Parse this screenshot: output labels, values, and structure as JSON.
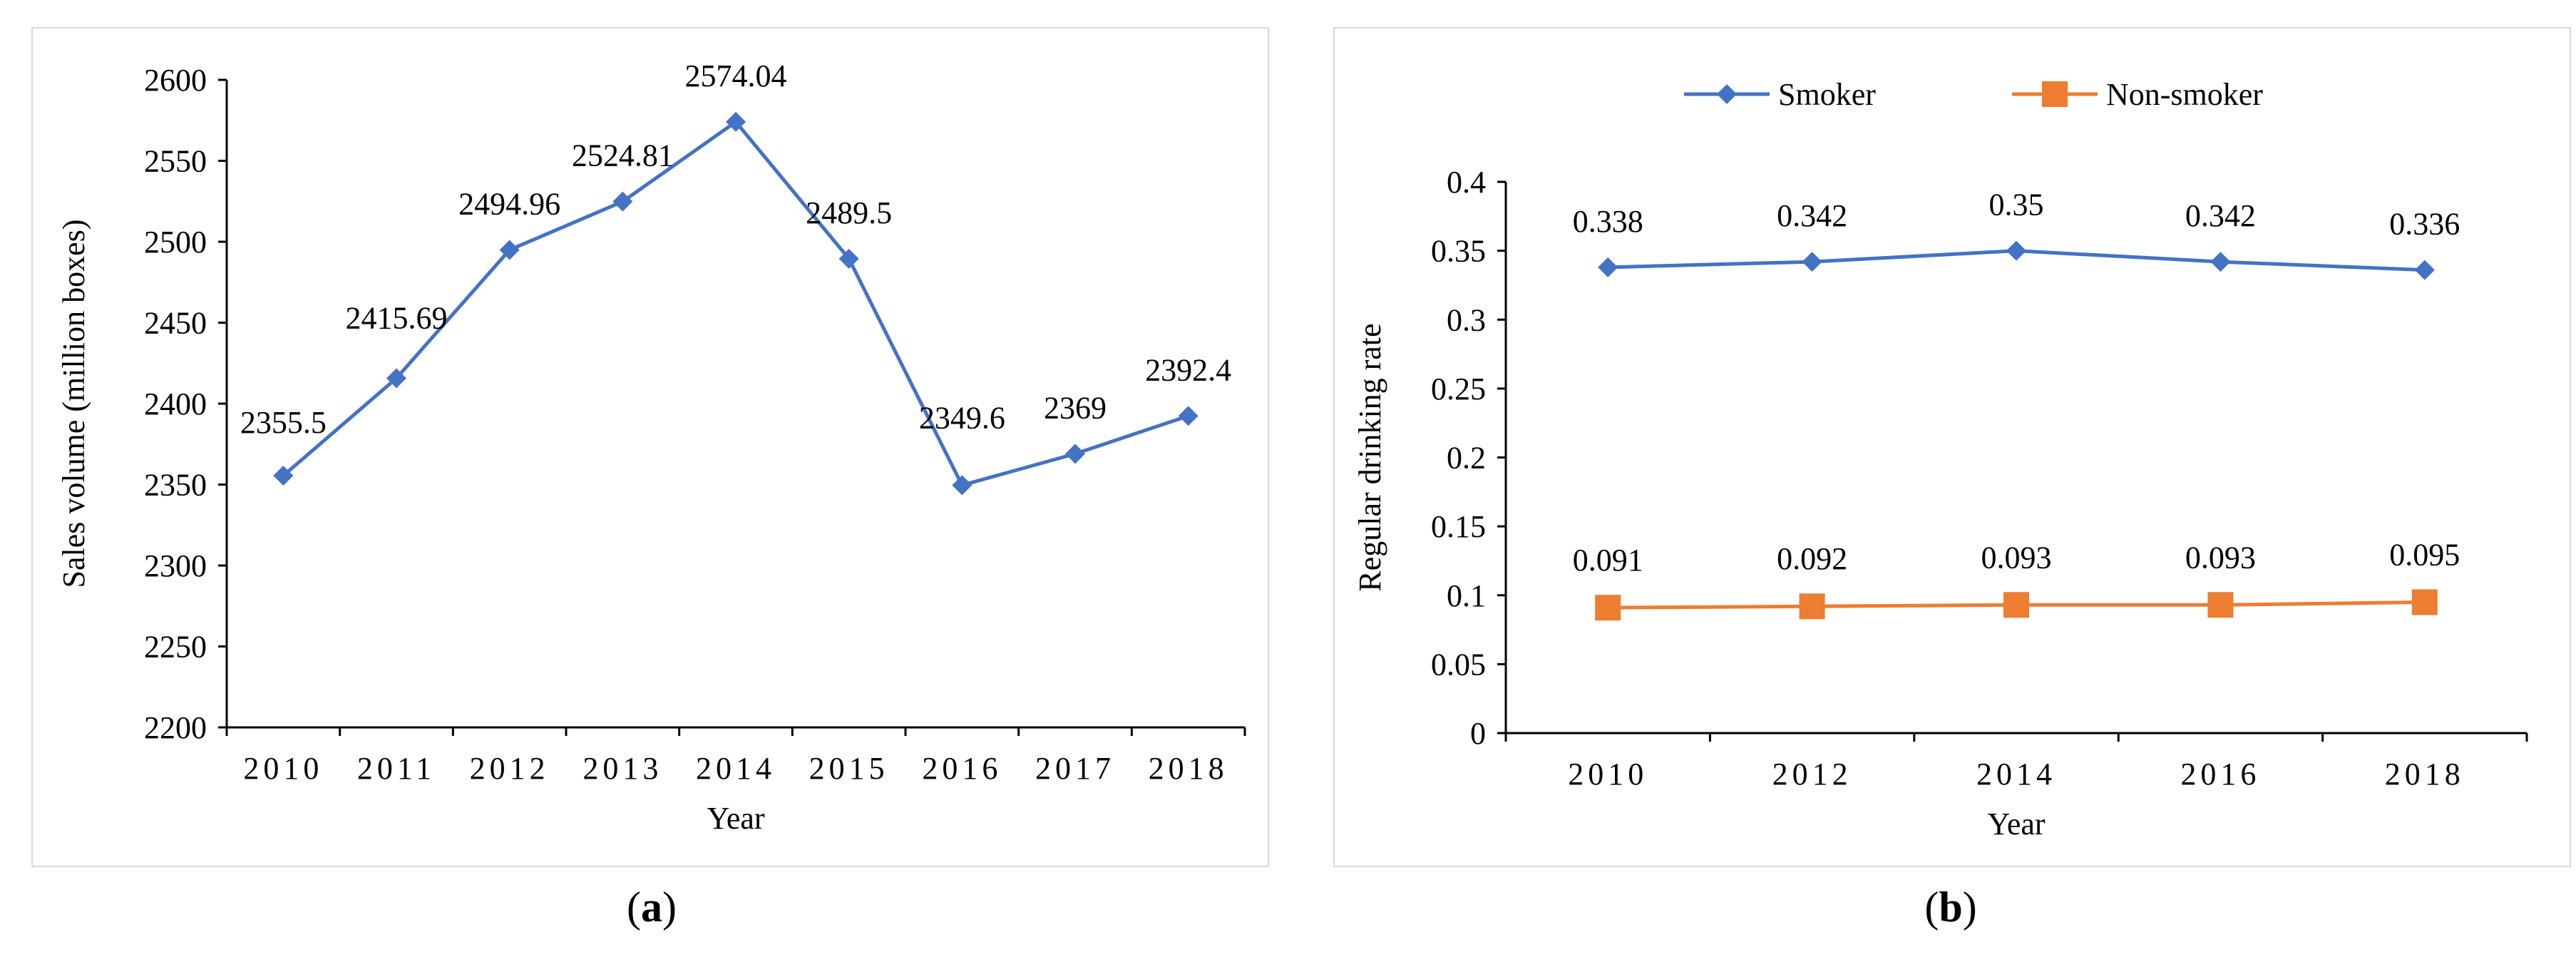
{
  "captions": {
    "a": "a",
    "b": "b"
  },
  "chart_data": [
    {
      "type": "line",
      "title": "",
      "xlabel": "Year",
      "ylabel": "Sales volume (million boxes)",
      "categories": [
        "2010",
        "2011",
        "2012",
        "2013",
        "2014",
        "2015",
        "2016",
        "2017",
        "2018"
      ],
      "series": [
        {
          "name": "Sales volume",
          "color": "#4472c4",
          "marker": "diamond",
          "values": [
            2355.5,
            2415.69,
            2494.96,
            2524.81,
            2574.04,
            2489.5,
            2349.6,
            2369,
            2392.4
          ],
          "labels": [
            "2355.5",
            "2415.69",
            "2494.96",
            "2524.81",
            "2574.04",
            "2489.5",
            "2349.6",
            "2369",
            "2392.4"
          ]
        }
      ],
      "ylim": [
        2200,
        2600
      ],
      "yticks": [
        "2200",
        "2250",
        "2300",
        "2350",
        "2400",
        "2450",
        "2500",
        "2550",
        "2600"
      ],
      "legend": "none",
      "grid": false
    },
    {
      "type": "line",
      "title": "",
      "xlabel": "Year",
      "ylabel": "Regular  drinking rate",
      "categories": [
        "2010",
        "2012",
        "2014",
        "2016",
        "2018"
      ],
      "series": [
        {
          "name": "Smoker",
          "color": "#4472c4",
          "marker": "diamond",
          "values": [
            0.338,
            0.342,
            0.35,
            0.342,
            0.336
          ],
          "labels": [
            "0.338",
            "0.342",
            "0.35",
            "0.342",
            "0.336"
          ]
        },
        {
          "name": "Non-smoker",
          "color": "#ed7d31",
          "marker": "square",
          "values": [
            0.091,
            0.092,
            0.093,
            0.093,
            0.095
          ],
          "labels": [
            "0.091",
            "0.092",
            "0.093",
            "0.093",
            "0.095"
          ]
        }
      ],
      "ylim": [
        0,
        0.4
      ],
      "yticks": [
        "0",
        "0.05",
        "0.1",
        "0.15",
        "0.2",
        "0.25",
        "0.3",
        "0.35",
        "0.4"
      ],
      "legend": "top",
      "grid": false
    }
  ]
}
